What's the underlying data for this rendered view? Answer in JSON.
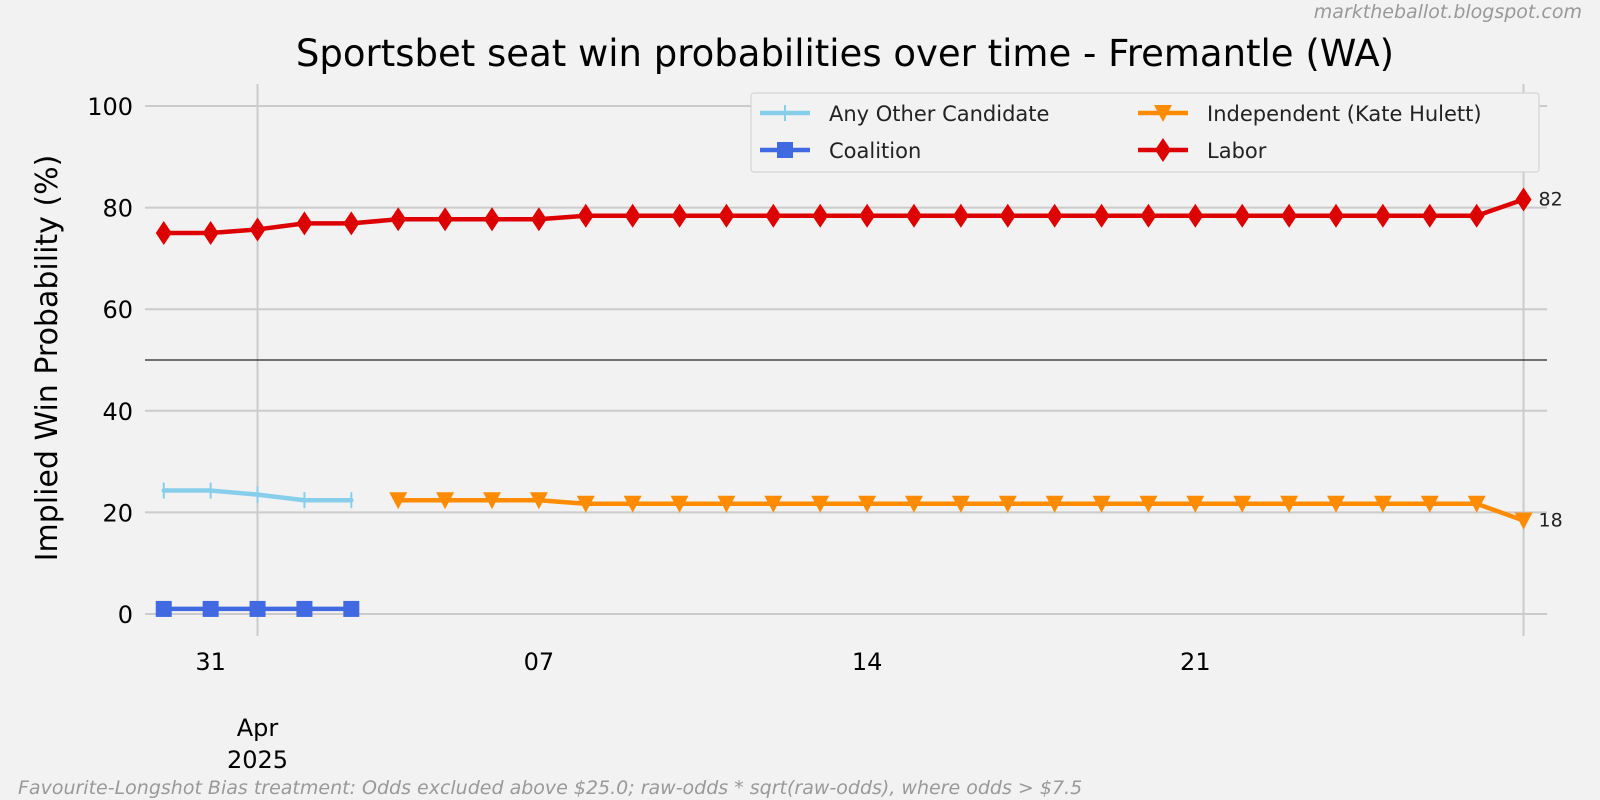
{
  "credit": "marktheballot.blogspot.com",
  "footnote": "Favourite-Longshot Bias treatment: Odds excluded above $25.0; raw-odds * sqrt(raw-odds), where odds > $7.5",
  "chart_data": {
    "type": "line",
    "title": "Sportsbet seat win probabilities over time - Fremantle (WA)",
    "xlabel": "",
    "ylabel": "Implied Win Probability (%)",
    "ylim": [
      0,
      100
    ],
    "yticks": [
      "0",
      "20",
      "40",
      "60",
      "80",
      "100"
    ],
    "xlim": [
      "2025-03-29",
      "2025-04-28"
    ],
    "xticks": [
      {
        "date": "2025-03-31",
        "label": "31"
      },
      {
        "date": "2025-04-01",
        "label": "Apr",
        "sublabel": "2025"
      },
      {
        "date": "2025-04-07",
        "label": "07"
      },
      {
        "date": "2025-04-14",
        "label": "14"
      },
      {
        "date": "2025-04-21",
        "label": "21"
      }
    ],
    "reference_line": 50,
    "grid": true,
    "legend": "top-right",
    "series": [
      {
        "name": "Any Other Candidate",
        "color": "#87ceeb",
        "marker": "vline",
        "points": [
          [
            "2025-03-30",
            24.3
          ],
          [
            "2025-03-31",
            24.3
          ],
          [
            "2025-04-01",
            23.5
          ],
          [
            "2025-04-02",
            22.4
          ],
          [
            "2025-04-03",
            22.4
          ]
        ]
      },
      {
        "name": "Coalition",
        "color": "#4169e1",
        "marker": "square",
        "points": [
          [
            "2025-03-30",
            1.0
          ],
          [
            "2025-03-31",
            1.0
          ],
          [
            "2025-04-01",
            1.0
          ],
          [
            "2025-04-02",
            1.0
          ],
          [
            "2025-04-03",
            1.0
          ]
        ]
      },
      {
        "name": "Independent (Kate Hulett)",
        "color": "#ff8c00",
        "marker": "triangle-down",
        "end_label": "18",
        "points": [
          [
            "2025-04-04",
            22.4
          ],
          [
            "2025-04-05",
            22.4
          ],
          [
            "2025-04-06",
            22.4
          ],
          [
            "2025-04-07",
            22.4
          ],
          [
            "2025-04-08",
            21.7
          ],
          [
            "2025-04-09",
            21.7
          ],
          [
            "2025-04-10",
            21.7
          ],
          [
            "2025-04-11",
            21.7
          ],
          [
            "2025-04-12",
            21.7
          ],
          [
            "2025-04-13",
            21.7
          ],
          [
            "2025-04-14",
            21.7
          ],
          [
            "2025-04-15",
            21.7
          ],
          [
            "2025-04-16",
            21.7
          ],
          [
            "2025-04-17",
            21.7
          ],
          [
            "2025-04-18",
            21.7
          ],
          [
            "2025-04-19",
            21.7
          ],
          [
            "2025-04-20",
            21.7
          ],
          [
            "2025-04-21",
            21.7
          ],
          [
            "2025-04-22",
            21.7
          ],
          [
            "2025-04-23",
            21.7
          ],
          [
            "2025-04-24",
            21.7
          ],
          [
            "2025-04-25",
            21.7
          ],
          [
            "2025-04-26",
            21.7
          ],
          [
            "2025-04-27",
            21.7
          ],
          [
            "2025-04-28",
            18.4
          ]
        ]
      },
      {
        "name": "Labor",
        "color": "#dd0000",
        "marker": "diamond",
        "end_label": "82",
        "points": [
          [
            "2025-03-30",
            75.0
          ],
          [
            "2025-03-31",
            75.0
          ],
          [
            "2025-04-01",
            75.7
          ],
          [
            "2025-04-02",
            76.9
          ],
          [
            "2025-04-03",
            76.9
          ],
          [
            "2025-04-04",
            77.7
          ],
          [
            "2025-04-05",
            77.7
          ],
          [
            "2025-04-06",
            77.7
          ],
          [
            "2025-04-07",
            77.7
          ],
          [
            "2025-04-08",
            78.4
          ],
          [
            "2025-04-09",
            78.4
          ],
          [
            "2025-04-10",
            78.4
          ],
          [
            "2025-04-11",
            78.4
          ],
          [
            "2025-04-12",
            78.4
          ],
          [
            "2025-04-13",
            78.4
          ],
          [
            "2025-04-14",
            78.4
          ],
          [
            "2025-04-15",
            78.4
          ],
          [
            "2025-04-16",
            78.4
          ],
          [
            "2025-04-17",
            78.4
          ],
          [
            "2025-04-18",
            78.4
          ],
          [
            "2025-04-19",
            78.4
          ],
          [
            "2025-04-20",
            78.4
          ],
          [
            "2025-04-21",
            78.4
          ],
          [
            "2025-04-22",
            78.4
          ],
          [
            "2025-04-23",
            78.4
          ],
          [
            "2025-04-24",
            78.4
          ],
          [
            "2025-04-25",
            78.4
          ],
          [
            "2025-04-26",
            78.4
          ],
          [
            "2025-04-27",
            78.4
          ],
          [
            "2025-04-28",
            81.6
          ]
        ]
      }
    ]
  }
}
